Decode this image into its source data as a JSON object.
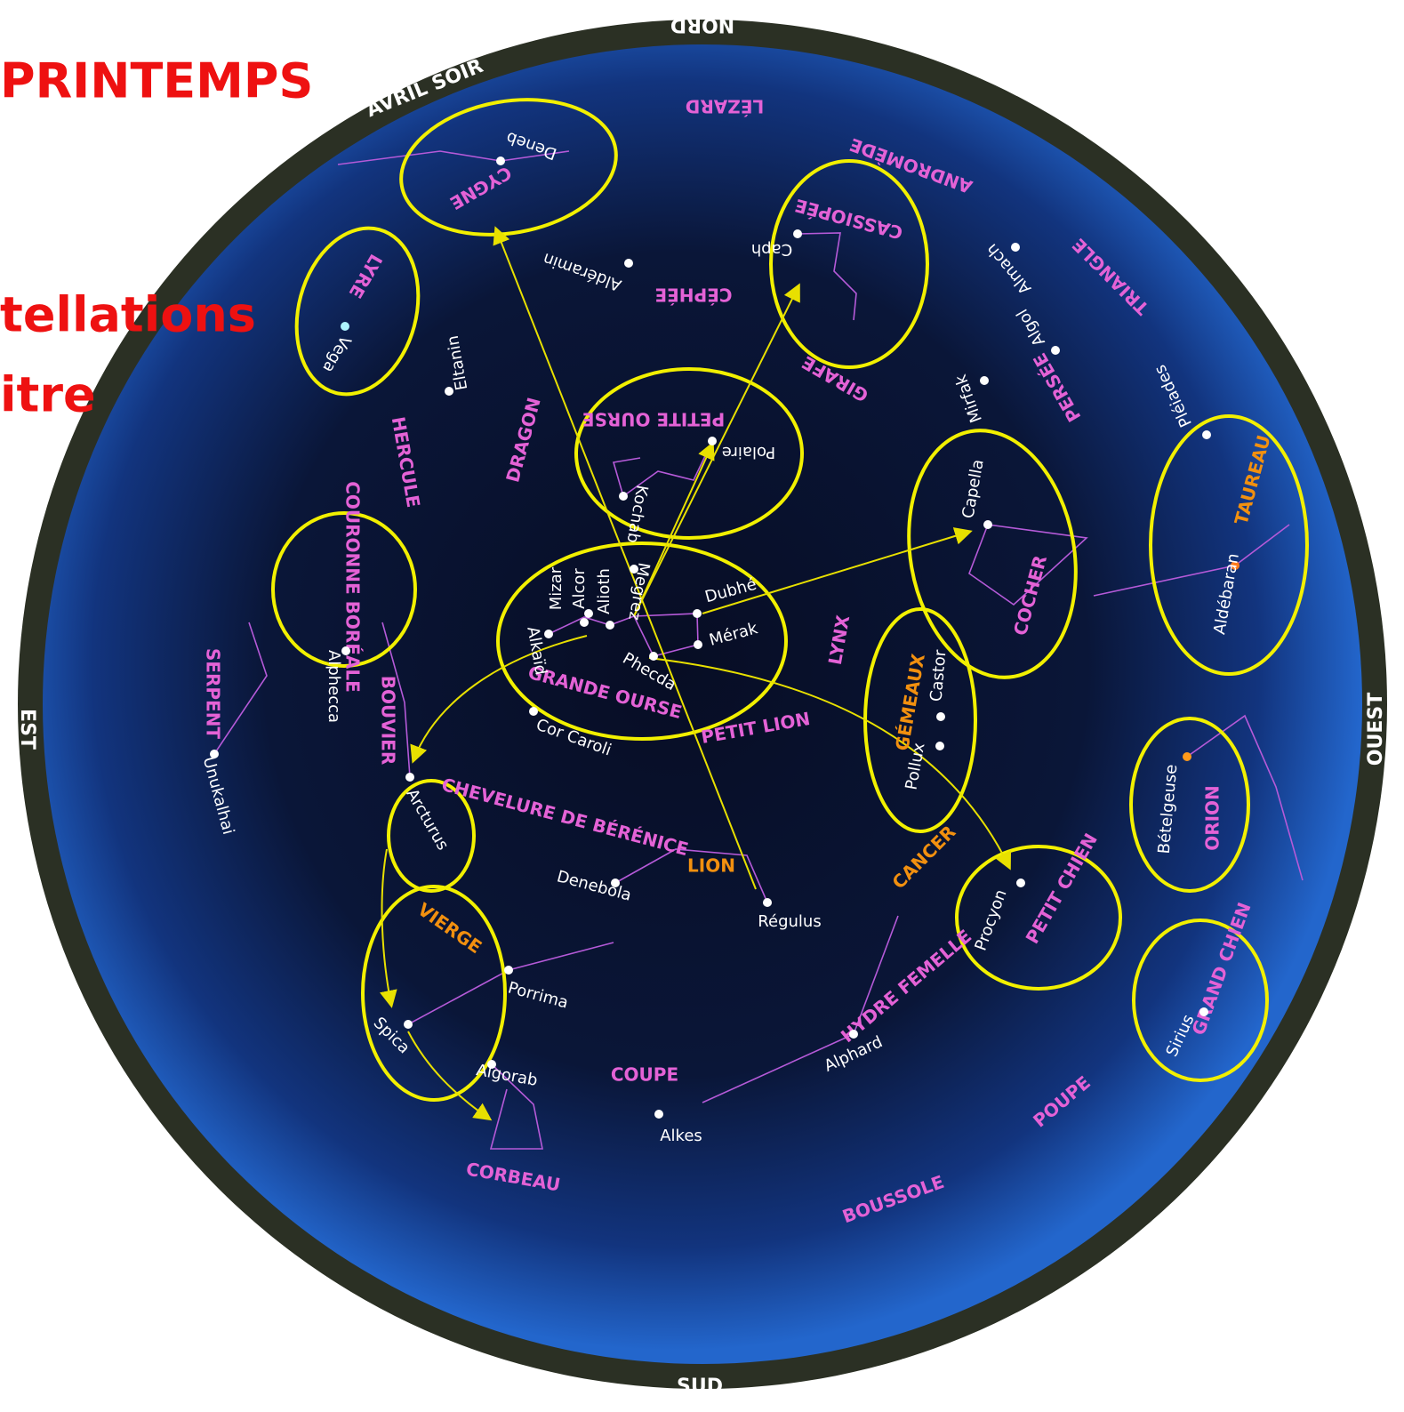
{
  "header": {
    "title": "PRINTEMPS",
    "fragments": [
      "tellations",
      "itre"
    ]
  },
  "compass": {
    "north": "NORD",
    "south": "SUD",
    "east": "EST",
    "west": "OUEST",
    "period": "AVRIL SOIR"
  },
  "constellations": [
    "LÉZARD",
    "ANDROMÈDE",
    "CASSIOPÉE",
    "CYGNE",
    "LYRE",
    "CÉPHÉE",
    "TRIANGLE",
    "PERSÉE",
    "GIRAFE",
    "PETITE OURSE",
    "DRAGON",
    "HERCULE",
    "COURONNE BORÉALE",
    "SERPENT",
    "BOUVIER",
    "GRANDE OURSE",
    "PETIT LION",
    "LYNX",
    "COCHER",
    "CHEVELURE DE BÉRÉNICE",
    "HYDRE FEMELLE",
    "COUPE",
    "CORBEAU",
    "BOUSSOLE",
    "POUPE",
    "PETIT CHIEN",
    "GRAND CHIEN",
    "ORION"
  ],
  "zodiac": [
    "TAUREAU",
    "GÉMEAUX",
    "CANCER",
    "LION",
    "VIERGE"
  ],
  "stars": [
    "Deneb",
    "Vega",
    "Aldéramin",
    "Eltanin",
    "Caph",
    "Almach",
    "Algol",
    "Mirfak",
    "Pléiades",
    "Capella",
    "Aldébaran",
    "Polaire",
    "Kochab",
    "Megrez",
    "Alioth",
    "Alcor",
    "Mizar",
    "Alkaïd",
    "Dubhé",
    "Mérak",
    "Phecda",
    "Cor Caroli",
    "Alphecca",
    "Unukalhai",
    "Arcturus",
    "Castor",
    "Pollux",
    "Bételgeuse",
    "Procyon",
    "Denebola",
    "Régulus",
    "Porrima",
    "Spica",
    "Algorab",
    "Alkes",
    "Alphard",
    "Sirius"
  ]
}
